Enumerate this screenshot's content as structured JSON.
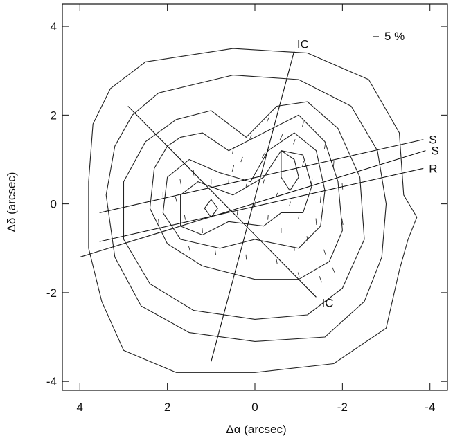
{
  "chart_data": {
    "type": "contour",
    "xlabel": "Δα (arcsec)",
    "ylabel": "Δδ (arcsec)",
    "xlim": [
      4.4,
      -4.4
    ],
    "ylim": [
      -4.2,
      4.5
    ],
    "x_reversed": true,
    "xticks": [
      4,
      2,
      0,
      -2,
      -4
    ],
    "xtick_labels": [
      "4",
      "2",
      "0",
      "-2",
      "-4"
    ],
    "yticks": [
      4,
      2,
      0,
      -2,
      -4
    ],
    "ytick_labels": [
      "4",
      "2",
      "0",
      "-2",
      "-4"
    ],
    "grid": false,
    "polarization_scale_label": "5 %",
    "contours": [
      {
        "level": 1,
        "points": [
          [
            2.5,
            3.2
          ],
          [
            0.5,
            3.5
          ],
          [
            -1.2,
            3.4
          ],
          [
            -2.6,
            2.8
          ],
          [
            -3.3,
            1.6
          ],
          [
            -3.4,
            0.2
          ],
          [
            -3.7,
            -0.3
          ],
          [
            -3.5,
            -0.8
          ],
          [
            -3.3,
            -1.5
          ],
          [
            -3.0,
            -2.8
          ],
          [
            -1.8,
            -3.6
          ],
          [
            0,
            -3.8
          ],
          [
            1.8,
            -3.8
          ],
          [
            3.0,
            -3.3
          ],
          [
            3.5,
            -2.2
          ],
          [
            3.8,
            -1.0
          ],
          [
            3.8,
            0.5
          ],
          [
            3.7,
            1.8
          ],
          [
            3.3,
            2.6
          ]
        ]
      },
      {
        "level": 2,
        "points": [
          [
            2.2,
            2.5
          ],
          [
            0.5,
            2.9
          ],
          [
            -1.0,
            2.8
          ],
          [
            -2.2,
            2.2
          ],
          [
            -2.8,
            1.2
          ],
          [
            -3.0,
            0.0
          ],
          [
            -2.9,
            -1.2
          ],
          [
            -2.5,
            -2.2
          ],
          [
            -1.6,
            -3.0
          ],
          [
            0,
            -3.1
          ],
          [
            1.5,
            -2.9
          ],
          [
            2.6,
            -2.3
          ],
          [
            3.2,
            -1.2
          ],
          [
            3.4,
            0.2
          ],
          [
            3.2,
            1.3
          ],
          [
            2.8,
            2.0
          ]
        ]
      },
      {
        "level": 3,
        "points": [
          [
            1.8,
            1.9
          ],
          [
            1.0,
            2.1
          ],
          [
            0.2,
            1.5
          ],
          [
            -0.5,
            2.2
          ],
          [
            -1.2,
            2.3
          ],
          [
            -1.9,
            1.7
          ],
          [
            -2.4,
            0.6
          ],
          [
            -2.5,
            -0.8
          ],
          [
            -2.0,
            -1.9
          ],
          [
            -1.2,
            -2.5
          ],
          [
            0,
            -2.6
          ],
          [
            1.4,
            -2.4
          ],
          [
            2.4,
            -1.8
          ],
          [
            3.0,
            -0.8
          ],
          [
            3.0,
            0.5
          ],
          [
            2.5,
            1.4
          ]
        ]
      },
      {
        "level": 4,
        "points": [
          [
            1.7,
            1.5
          ],
          [
            1.2,
            1.6
          ],
          [
            0.6,
            1.2
          ],
          [
            -0.2,
            1.6
          ],
          [
            -1.0,
            2.0
          ],
          [
            -1.6,
            1.4
          ],
          [
            -1.9,
            0.5
          ],
          [
            -2.0,
            -0.6
          ],
          [
            -1.7,
            -1.3
          ],
          [
            -1.0,
            -1.7
          ],
          [
            0,
            -1.7
          ],
          [
            1.2,
            -1.4
          ],
          [
            2.0,
            -0.9
          ],
          [
            2.4,
            -0.1
          ],
          [
            2.3,
            0.8
          ],
          [
            2.0,
            1.3
          ]
        ]
      },
      {
        "level": 5,
        "points": [
          [
            1.5,
            1.0
          ],
          [
            0.8,
            0.7
          ],
          [
            0.1,
            0.5
          ],
          [
            -0.3,
            1.2
          ],
          [
            -0.9,
            1.6
          ],
          [
            -1.4,
            1.2
          ],
          [
            -1.6,
            0.3
          ],
          [
            -1.5,
            -0.5
          ],
          [
            -1.0,
            -1.0
          ],
          [
            0,
            -0.8
          ],
          [
            0.8,
            -1.0
          ],
          [
            1.7,
            -0.8
          ],
          [
            2.1,
            -0.2
          ],
          [
            2.0,
            0.6
          ]
        ]
      },
      {
        "level": 6,
        "points": [
          [
            1.3,
            0.5
          ],
          [
            0.5,
            0.2
          ],
          [
            -0.2,
            0.6
          ],
          [
            -0.6,
            1.2
          ],
          [
            -1.1,
            1.1
          ],
          [
            -1.3,
            0.4
          ],
          [
            -1.1,
            -0.2
          ],
          [
            -0.6,
            -0.2
          ],
          [
            -0.2,
            -0.5
          ],
          [
            0.6,
            -0.4
          ],
          [
            1.2,
            -0.7
          ],
          [
            1.7,
            -0.5
          ],
          [
            1.7,
            0.2
          ]
        ]
      },
      {
        "level": 7,
        "points": [
          [
            -0.6,
            1.2
          ],
          [
            -0.9,
            1.0
          ],
          [
            -1.0,
            0.6
          ],
          [
            -0.8,
            0.3
          ],
          [
            -0.6,
            0.6
          ]
        ]
      },
      {
        "level": 8,
        "points": [
          [
            1.0,
            0.1
          ],
          [
            0.85,
            -0.1
          ],
          [
            1.0,
            -0.3
          ],
          [
            1.15,
            -0.1
          ]
        ]
      }
    ],
    "lines": [
      {
        "label": "IC",
        "from": [
          2.9,
          2.2
        ],
        "to": [
          -1.4,
          -2.1
        ]
      },
      {
        "label": "IC",
        "from": [
          1.0,
          -3.55
        ],
        "to": [
          -0.9,
          3.45
        ]
      },
      {
        "label": "S",
        "from": [
          4.0,
          -1.2
        ],
        "to": [
          -3.9,
          1.2
        ]
      },
      {
        "label": "R",
        "from": [
          3.55,
          -0.85
        ],
        "to": [
          -3.85,
          0.8
        ]
      },
      {
        "label": "S",
        "from": [
          3.55,
          -0.2
        ],
        "to": [
          -3.85,
          1.45
        ]
      }
    ],
    "polarization_vectors": [
      [
        0.5,
        1.2,
        0.15,
        80
      ],
      [
        0.5,
        0.8,
        0.15,
        75
      ],
      [
        0.3,
        1.0,
        0.12,
        70
      ],
      [
        -0.2,
        1.1,
        0.15,
        60
      ],
      [
        -0.6,
        1.5,
        0.15,
        65
      ],
      [
        -0.9,
        1.4,
        0.12,
        70
      ],
      [
        -1.1,
        0.9,
        0.15,
        75
      ],
      [
        -1.3,
        0.5,
        0.15,
        80
      ],
      [
        -1.5,
        0.1,
        0.15,
        85
      ],
      [
        -1.4,
        -0.4,
        0.15,
        95
      ],
      [
        -1.2,
        -0.8,
        0.15,
        100
      ],
      [
        -0.9,
        -1.0,
        0.12,
        95
      ],
      [
        -0.6,
        -0.6,
        0.12,
        90
      ],
      [
        -0.3,
        -0.3,
        0.12,
        85
      ],
      [
        0.0,
        0.0,
        0.1,
        80
      ],
      [
        0.4,
        -0.2,
        0.12,
        85
      ],
      [
        0.8,
        -0.5,
        0.12,
        90
      ],
      [
        1.2,
        -0.6,
        0.12,
        95
      ],
      [
        1.6,
        -0.3,
        0.12,
        100
      ],
      [
        1.8,
        0.1,
        0.12,
        105
      ],
      [
        1.7,
        0.5,
        0.12,
        100
      ],
      [
        1.4,
        0.7,
        0.12,
        95
      ],
      [
        1.0,
        0.5,
        0.12,
        90
      ],
      [
        0.6,
        0.5,
        0.1,
        85
      ],
      [
        0.2,
        0.4,
        0.1,
        80
      ],
      [
        -0.2,
        0.5,
        0.1,
        75
      ],
      [
        -0.5,
        0.2,
        0.1,
        70
      ],
      [
        -0.8,
        0.0,
        0.1,
        75
      ],
      [
        -1.0,
        -0.3,
        0.1,
        80
      ],
      [
        -1.6,
        -1.1,
        0.15,
        110
      ],
      [
        -1.8,
        -1.5,
        0.15,
        115
      ],
      [
        -1.5,
        -1.7,
        0.15,
        110
      ],
      [
        -1.0,
        -1.6,
        0.12,
        105
      ],
      [
        -0.5,
        -1.3,
        0.12,
        100
      ],
      [
        0.2,
        -1.2,
        0.12,
        95
      ],
      [
        0.9,
        -1.1,
        0.12,
        100
      ],
      [
        1.5,
        -1.0,
        0.12,
        105
      ],
      [
        -2.0,
        -0.4,
        0.15,
        100
      ],
      [
        -2.0,
        0.4,
        0.15,
        95
      ],
      [
        -1.8,
        0.9,
        0.15,
        85
      ],
      [
        -1.6,
        1.3,
        0.12,
        80
      ],
      [
        -1.1,
        1.8,
        0.12,
        75
      ],
      [
        2.1,
        0.2,
        0.12,
        90
      ],
      [
        2.2,
        -0.4,
        0.12,
        95
      ],
      [
        0.1,
        1.5,
        0.12,
        70
      ],
      [
        -0.3,
        1.9,
        0.12,
        65
      ]
    ]
  }
}
